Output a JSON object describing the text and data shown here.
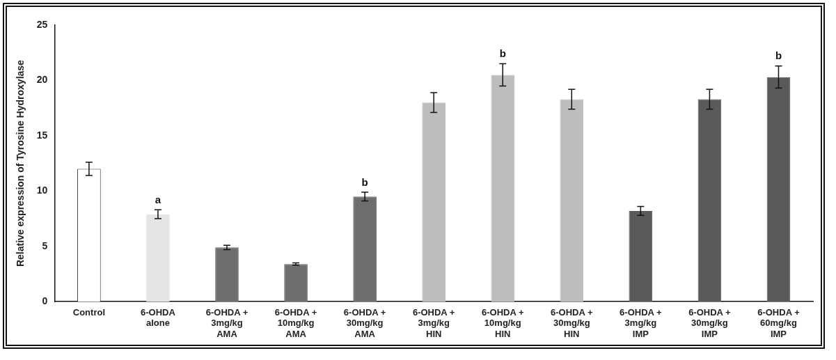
{
  "chart_data": {
    "type": "bar",
    "ylabel": "Relative expression of Tyrosine Hydroxylase",
    "categories": [
      "Control",
      "6-OHDA\nalone",
      "6-OHDA +\n3mg/kg\nAMA",
      "6-OHDA +\n10mg/kg\nAMA",
      "6-OHDA +\n30mg/kg\nAMA",
      "6-OHDA +\n3mg/kg\nHIN",
      "6-OHDA +\n10mg/kg\nHIN",
      "6-OHDA +\n30mg/kg\nHIN",
      "6-OHDA +\n3mg/kg\nIMP",
      "6-OHDA +\n30mg/kg\nIMP",
      "6-OHDA +\n60mg/kg\nIMP"
    ],
    "values": [
      12.0,
      7.9,
      4.9,
      3.4,
      9.5,
      18.0,
      20.5,
      18.3,
      8.2,
      18.3,
      20.3
    ],
    "errors": [
      0.6,
      0.4,
      0.2,
      0.1,
      0.4,
      0.9,
      1.0,
      0.9,
      0.4,
      0.9,
      1.0
    ],
    "colors": [
      "#ffffff",
      "#e4e4e4",
      "#6e6e6e",
      "#6e6e6e",
      "#6e6e6e",
      "#bdbdbd",
      "#bdbdbd",
      "#bdbdbd",
      "#5a5a5a",
      "#5a5a5a",
      "#5a5a5a"
    ],
    "ylim": [
      0,
      25
    ],
    "yticks": [
      0,
      5,
      10,
      15,
      20,
      25
    ],
    "grid": false,
    "legend": false,
    "annotations": [
      {
        "text": "a",
        "x": "6-OHDA\nalone",
        "y": 8.3
      },
      {
        "text": "b",
        "x": "6-OHDA +\n30mg/kg\nAMA",
        "y": 9.9
      },
      {
        "text": "b",
        "x": "6-OHDA +\n10mg/kg\nHIN",
        "y": 21.5
      },
      {
        "text": "b",
        "x": "6-OHDA +\n60mg/kg\nIMP",
        "y": 21.3
      }
    ]
  }
}
